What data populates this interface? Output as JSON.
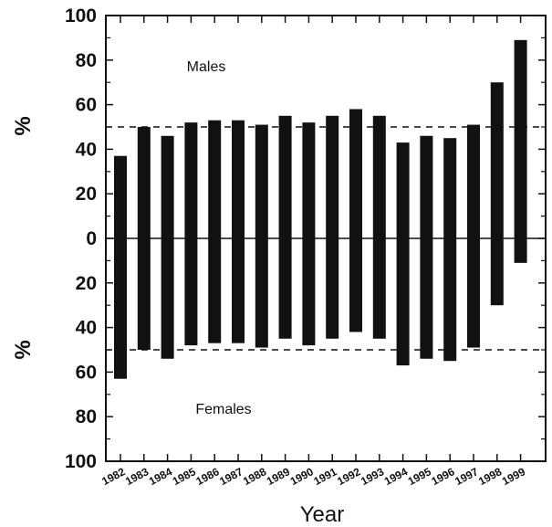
{
  "chart_data": {
    "type": "bar",
    "xlabel": "Year",
    "ylabel_top": "%",
    "ylabel_bottom": "%",
    "group_labels": {
      "top": "Males",
      "bottom": "Females"
    },
    "categories": [
      "1982",
      "1983",
      "1984",
      "1985",
      "1986",
      "1987",
      "1988",
      "1989",
      "1990",
      "1991",
      "1992",
      "1993",
      "1994",
      "1995",
      "1996",
      "1997",
      "1998",
      "1999"
    ],
    "series": [
      {
        "name": "Males",
        "values": [
          37,
          50,
          46,
          52,
          53,
          53,
          51,
          55,
          52,
          55,
          58,
          55,
          43,
          46,
          45,
          51,
          70,
          89
        ]
      },
      {
        "name": "Females",
        "values": [
          63,
          50,
          54,
          48,
          47,
          47,
          49,
          45,
          48,
          45,
          42,
          45,
          57,
          54,
          55,
          49,
          30,
          11
        ]
      }
    ],
    "y_tick_labels": [
      "100",
      "80",
      "60",
      "40",
      "20",
      "0",
      "20",
      "40",
      "60",
      "80",
      "100"
    ],
    "ylim": [
      -100,
      100
    ],
    "reference_lines": [
      50,
      -50
    ],
    "zero_line": true,
    "grid": false,
    "bar_color": "#111111"
  }
}
